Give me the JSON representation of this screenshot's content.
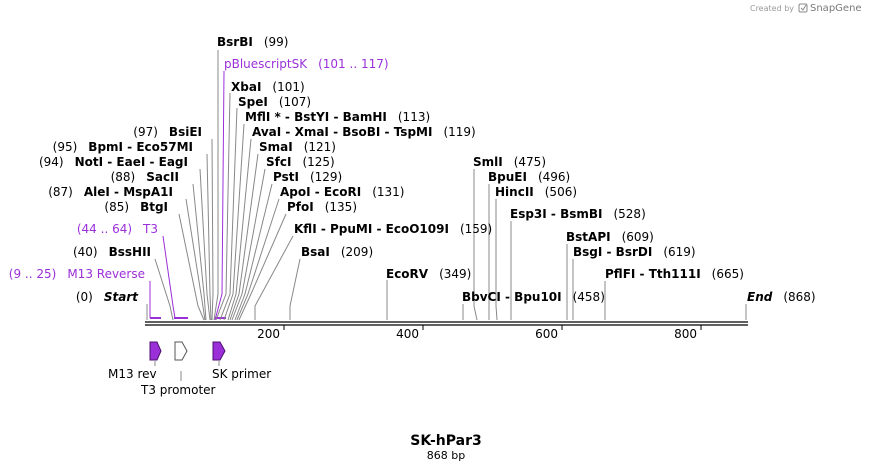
{
  "brand": {
    "credit": "Created by",
    "name": "SnapGene"
  },
  "plasmid": {
    "name": "SK-hPar3",
    "size": "868 bp"
  },
  "colors": {
    "feature": "#9b30d9",
    "backbone": "#000000",
    "text": "#000000"
  },
  "axis": {
    "ticks": [
      "200",
      "400",
      "600",
      "800"
    ]
  },
  "labels": [
    {
      "pos": "(99)",
      "name": "BsrBI"
    },
    {
      "pos": "(101 .. 117)",
      "name": "pBluescriptSK",
      "feature": true
    },
    {
      "pos": "(101)",
      "name": "XbaI"
    },
    {
      "pos": "(107)",
      "name": "SpeI"
    },
    {
      "pos": "(113)",
      "name": "MflI * - BstYI - BamHI"
    },
    {
      "pos": "(119)",
      "name": "AvaI - XmaI - BsoBI - TspMI"
    },
    {
      "pos": "(121)",
      "name": "SmaI"
    },
    {
      "pos": "(125)",
      "name": "SfcI"
    },
    {
      "pos": "(129)",
      "name": "PstI"
    },
    {
      "pos": "(131)",
      "name": "ApoI - EcoRI"
    },
    {
      "pos": "(135)",
      "name": "PfoI"
    },
    {
      "pos": "(159)",
      "name": "KflI - PpuMI - EcoO109I"
    },
    {
      "pos": "(209)",
      "name": "BsaI"
    },
    {
      "pos": "(97)",
      "name": "BsiEI"
    },
    {
      "pos": "(95)",
      "name": "BpmI - Eco57MI"
    },
    {
      "pos": "(94)",
      "name": "NotI - EaeI - EagI"
    },
    {
      "pos": "(88)",
      "name": "SacII"
    },
    {
      "pos": "(87)",
      "name": "AleI - MspA1I"
    },
    {
      "pos": "(85)",
      "name": "BtgI"
    },
    {
      "pos": "(44 .. 64)",
      "name": "T3",
      "feature": true
    },
    {
      "pos": "(40)",
      "name": "BssHII"
    },
    {
      "pos": "(9 .. 25)",
      "name": "M13 Reverse",
      "feature": true
    },
    {
      "pos": "(0)",
      "name": "Start",
      "italic": true
    },
    {
      "pos": "(349)",
      "name": "EcoRV"
    },
    {
      "pos": "(475)",
      "name": "SmlI"
    },
    {
      "pos": "(496)",
      "name": "BpuEI"
    },
    {
      "pos": "(506)",
      "name": "HincII"
    },
    {
      "pos": "(528)",
      "name": "Esp3I - BsmBI"
    },
    {
      "pos": "(458)",
      "name": "BbvCI - Bpu10I"
    },
    {
      "pos": "(609)",
      "name": "BstAPI"
    },
    {
      "pos": "(619)",
      "name": "BsgI - BsrDI"
    },
    {
      "pos": "(665)",
      "name": "PflFI - Tth111I"
    },
    {
      "pos": "(868)",
      "name": "End",
      "italic": true
    }
  ],
  "features": [
    {
      "name": "M13 rev",
      "filled": true
    },
    {
      "name": "T3 promoter",
      "filled": false
    },
    {
      "name": "SK primer",
      "filled": true
    }
  ]
}
